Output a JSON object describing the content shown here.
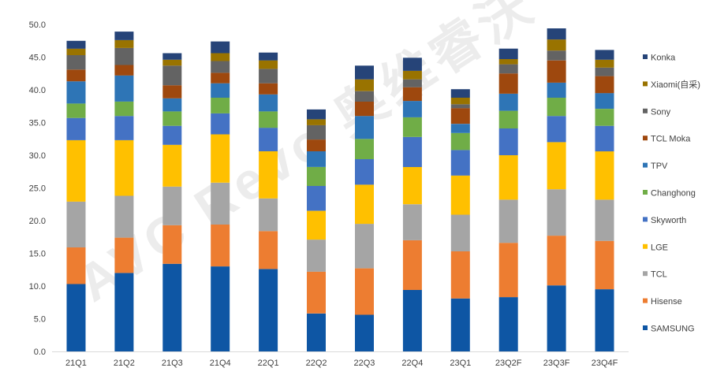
{
  "watermark": "AVC Revo 奥维睿沃",
  "chart_data": {
    "type": "bar",
    "stacked": true,
    "title": "",
    "xlabel": "",
    "ylabel": "",
    "ylim": [
      0,
      50
    ],
    "yticks": [
      "0.0",
      "5.0",
      "10.0",
      "15.0",
      "20.0",
      "25.0",
      "30.0",
      "35.0",
      "40.0",
      "45.0",
      "50.0"
    ],
    "grid": false,
    "legend_position": "right",
    "categories": [
      "21Q1",
      "21Q2",
      "21Q3",
      "21Q4",
      "22Q1",
      "22Q2",
      "22Q3",
      "22Q4",
      "23Q1",
      "23Q2F",
      "23Q3F",
      "23Q4F"
    ],
    "series": [
      {
        "name": "SAMSUNG",
        "color": "#0e56a4",
        "values": [
          10.3,
          12.0,
          13.4,
          13.0,
          12.6,
          5.8,
          5.6,
          9.4,
          8.1,
          8.3,
          10.1,
          9.5
        ]
      },
      {
        "name": "Hisense",
        "color": "#ed7d31",
        "values": [
          5.6,
          5.4,
          5.9,
          6.4,
          5.8,
          6.4,
          7.1,
          7.6,
          7.2,
          8.3,
          7.6,
          7.4
        ]
      },
      {
        "name": "TCL",
        "color": "#a5a5a5",
        "values": [
          7.0,
          6.4,
          5.9,
          6.4,
          5.0,
          4.9,
          6.8,
          5.5,
          5.6,
          6.6,
          7.1,
          6.3
        ]
      },
      {
        "name": "LGE",
        "color": "#ffc000",
        "values": [
          9.4,
          8.5,
          6.4,
          7.4,
          7.2,
          4.4,
          6.0,
          5.7,
          6.0,
          6.8,
          7.2,
          7.4
        ]
      },
      {
        "name": "Skyworth",
        "color": "#4472c4",
        "values": [
          3.4,
          3.7,
          2.9,
          3.2,
          3.6,
          3.8,
          3.9,
          4.6,
          3.9,
          4.1,
          4.0,
          3.9
        ]
      },
      {
        "name": "Changhong",
        "color": "#70ad47",
        "values": [
          2.2,
          2.2,
          2.2,
          2.4,
          2.5,
          2.9,
          3.1,
          3.0,
          2.6,
          2.7,
          2.8,
          2.6
        ]
      },
      {
        "name": "TPV",
        "color": "#2e75b6",
        "values": [
          3.4,
          4.0,
          2.0,
          2.2,
          2.6,
          2.4,
          3.5,
          2.5,
          1.4,
          2.6,
          2.3,
          2.4
        ]
      },
      {
        "name": "TCL Moka",
        "color": "#9e480e",
        "values": [
          1.8,
          1.6,
          2.0,
          1.6,
          1.7,
          1.8,
          2.2,
          2.1,
          2.4,
          3.1,
          3.4,
          2.6
        ]
      },
      {
        "name": "Sony",
        "color": "#636363",
        "values": [
          2.2,
          2.6,
          3.0,
          1.8,
          2.2,
          2.2,
          1.6,
          1.2,
          0.6,
          1.4,
          1.5,
          1.3
        ]
      },
      {
        "name": "Xiaomi(自采)",
        "color": "#997300",
        "values": [
          1.0,
          1.2,
          0.9,
          1.2,
          1.3,
          0.9,
          1.8,
          1.3,
          1.0,
          0.8,
          1.7,
          1.2
        ]
      },
      {
        "name": "Konka",
        "color": "#264478",
        "values": [
          1.2,
          1.3,
          1.0,
          1.8,
          1.2,
          1.5,
          2.1,
          2.0,
          1.3,
          1.6,
          1.7,
          1.5
        ]
      }
    ]
  }
}
